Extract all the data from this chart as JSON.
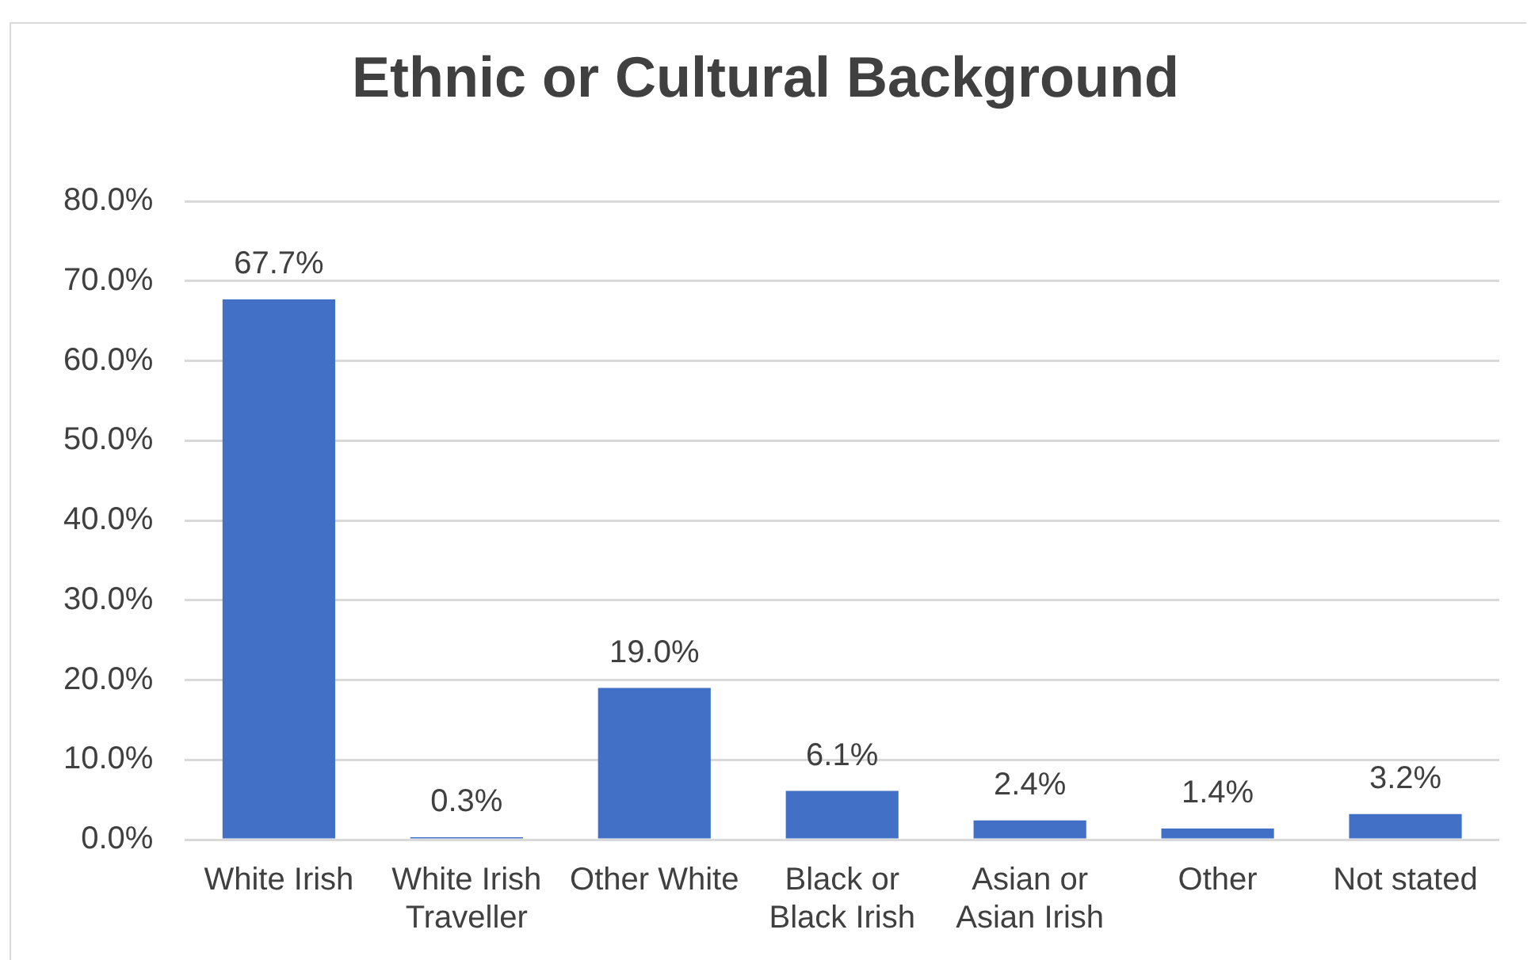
{
  "chart_data": {
    "type": "bar",
    "title": "Ethnic or Cultural Background",
    "categories": [
      "White Irish",
      "White Irish Traveller",
      "Other White",
      "Black or Black Irish",
      "Asian or Asian Irish",
      "Other",
      "Not stated"
    ],
    "values": [
      67.7,
      0.3,
      19.0,
      6.1,
      2.4,
      1.4,
      3.2
    ],
    "value_labels": [
      "67.7%",
      "0.3%",
      "19.0%",
      "6.1%",
      "2.4%",
      "1.4%",
      "3.2%"
    ],
    "color": "#4170c6",
    "ylim": [
      0,
      80
    ],
    "yticks": [
      {
        "value": 0,
        "label": "0.0%"
      },
      {
        "value": 10,
        "label": "10.0%"
      },
      {
        "value": 20,
        "label": "20.0%"
      },
      {
        "value": 30,
        "label": "30.0%"
      },
      {
        "value": 40,
        "label": "40.0%"
      },
      {
        "value": 50,
        "label": "50.0%"
      },
      {
        "value": 60,
        "label": "60.0%"
      },
      {
        "value": 70,
        "label": "70.0%"
      },
      {
        "value": 80,
        "label": "80.0%"
      }
    ],
    "grid": "y",
    "legend": false
  }
}
